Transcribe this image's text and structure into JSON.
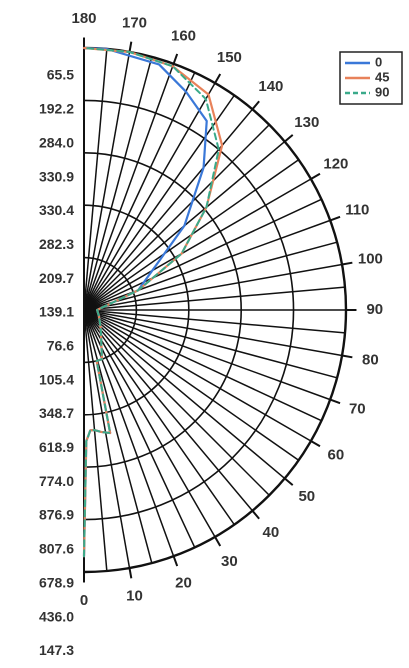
{
  "chart_data": {
    "type": "line",
    "subtype": "polar-half",
    "title": "",
    "radial_axis_labels": [
      "65.5",
      "192.2",
      "284.0",
      "330.9",
      "330.4",
      "282.3",
      "209.7",
      "139.1",
      "76.6",
      "105.4",
      "348.7",
      "618.9",
      "774.0",
      "876.9",
      "807.6",
      "678.9",
      "436.0",
      "147.3"
    ],
    "angle_axis": {
      "labels": [
        "0",
        "10",
        "20",
        "30",
        "40",
        "50",
        "60",
        "70",
        "80",
        "90",
        "100",
        "110",
        "120",
        "130",
        "140",
        "150",
        "160",
        "170",
        "180"
      ],
      "range_degrees": [
        0,
        180
      ]
    },
    "grid": true,
    "legend": {
      "position": "top-right",
      "entries": [
        "0",
        "45",
        "90"
      ]
    },
    "series": [
      {
        "name": "0",
        "color": "#3a78d8",
        "dash": "solid",
        "points": [
          {
            "angle": 0,
            "r": 0.94
          },
          {
            "angle": 1,
            "r": 0.5
          },
          {
            "angle": 2,
            "r": 0.48
          },
          {
            "angle": 3,
            "r": 0.46
          },
          {
            "angle": 5,
            "r": 0.46
          },
          {
            "angle": 8,
            "r": 0.47
          },
          {
            "angle": 12,
            "r": 0.48
          },
          {
            "angle": 14,
            "r": 0.2
          },
          {
            "angle": 20,
            "r": 0.2
          },
          {
            "angle": 40,
            "r": 0.1
          },
          {
            "angle": 50,
            "r": 0.08
          },
          {
            "angle": 70,
            "r": 0.06
          },
          {
            "angle": 90,
            "r": 0.05
          },
          {
            "angle": 110,
            "r": 0.22
          },
          {
            "angle": 130,
            "r": 0.5
          },
          {
            "angle": 140,
            "r": 0.71
          },
          {
            "angle": 147,
            "r": 0.86
          },
          {
            "angle": 155,
            "r": 0.92
          },
          {
            "angle": 163,
            "r": 0.98
          },
          {
            "angle": 175,
            "r": 1.0
          },
          {
            "angle": 180,
            "r": 1.0
          }
        ]
      },
      {
        "name": "45",
        "color": "#e8825a",
        "dash": "solid",
        "points": [
          {
            "angle": 0,
            "r": 0.94
          },
          {
            "angle": 1,
            "r": 0.5
          },
          {
            "angle": 2,
            "r": 0.48
          },
          {
            "angle": 3,
            "r": 0.46
          },
          {
            "angle": 5,
            "r": 0.46
          },
          {
            "angle": 8,
            "r": 0.47
          },
          {
            "angle": 12,
            "r": 0.48
          },
          {
            "angle": 14,
            "r": 0.2
          },
          {
            "angle": 20,
            "r": 0.2
          },
          {
            "angle": 40,
            "r": 0.1
          },
          {
            "angle": 50,
            "r": 0.08
          },
          {
            "angle": 70,
            "r": 0.06
          },
          {
            "angle": 90,
            "r": 0.05
          },
          {
            "angle": 110,
            "r": 0.22
          },
          {
            "angle": 120,
            "r": 0.43
          },
          {
            "angle": 130,
            "r": 0.61
          },
          {
            "angle": 140,
            "r": 0.82
          },
          {
            "angle": 150,
            "r": 0.95
          },
          {
            "angle": 160,
            "r": 0.99
          },
          {
            "angle": 170,
            "r": 1.0
          },
          {
            "angle": 180,
            "r": 1.0
          }
        ]
      },
      {
        "name": "90",
        "color": "#3aaa8a",
        "dash": "dashed",
        "points": [
          {
            "angle": 0,
            "r": 0.94
          },
          {
            "angle": 1,
            "r": 0.5
          },
          {
            "angle": 2,
            "r": 0.48
          },
          {
            "angle": 3,
            "r": 0.46
          },
          {
            "angle": 5,
            "r": 0.46
          },
          {
            "angle": 8,
            "r": 0.47
          },
          {
            "angle": 12,
            "r": 0.48
          },
          {
            "angle": 14,
            "r": 0.2
          },
          {
            "angle": 20,
            "r": 0.2
          },
          {
            "angle": 40,
            "r": 0.1
          },
          {
            "angle": 50,
            "r": 0.08
          },
          {
            "angle": 70,
            "r": 0.06
          },
          {
            "angle": 90,
            "r": 0.05
          },
          {
            "angle": 110,
            "r": 0.22
          },
          {
            "angle": 120,
            "r": 0.43
          },
          {
            "angle": 130,
            "r": 0.61
          },
          {
            "angle": 140,
            "r": 0.8
          },
          {
            "angle": 150,
            "r": 0.93
          },
          {
            "angle": 160,
            "r": 0.99
          },
          {
            "angle": 170,
            "r": 1.0
          },
          {
            "angle": 180,
            "r": 1.0
          }
        ]
      }
    ]
  }
}
